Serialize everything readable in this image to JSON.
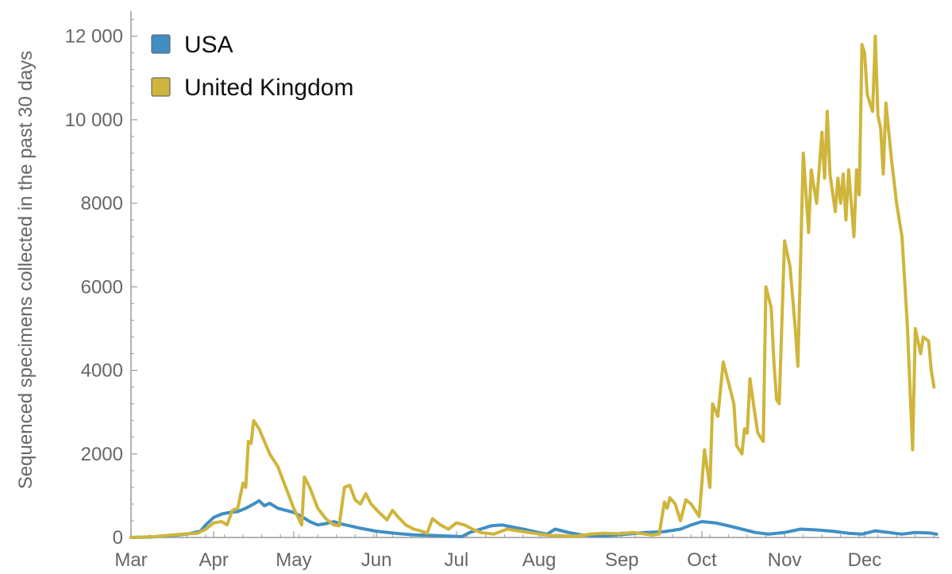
{
  "chart_data": {
    "type": "line",
    "ylabel": "Sequenced specimens collected in the past 30 days",
    "xlabel": "",
    "ylim": [
      0,
      12600
    ],
    "xlim": [
      "2020-03-01",
      "2020-12-29"
    ],
    "x_ticks": [
      {
        "label": "Mar",
        "date": "2020-03-01"
      },
      {
        "label": "Apr",
        "date": "2020-04-01"
      },
      {
        "label": "May",
        "date": "2020-05-01"
      },
      {
        "label": "Jun",
        "date": "2020-06-01"
      },
      {
        "label": "Jul",
        "date": "2020-07-01"
      },
      {
        "label": "Aug",
        "date": "2020-08-01"
      },
      {
        "label": "Sep",
        "date": "2020-09-01"
      },
      {
        "label": "Oct",
        "date": "2020-10-01"
      },
      {
        "label": "Nov",
        "date": "2020-11-01"
      },
      {
        "label": "Dec",
        "date": "2020-12-01"
      }
    ],
    "y_ticks": [
      {
        "value": 0,
        "label": "0"
      },
      {
        "value": 2000,
        "label": "2000"
      },
      {
        "value": 4000,
        "label": "4000"
      },
      {
        "value": 6000,
        "label": "6000"
      },
      {
        "value": 8000,
        "label": "8000"
      },
      {
        "value": 10000,
        "label": "10 000"
      },
      {
        "value": 12000,
        "label": "12 000"
      }
    ],
    "legend_position": "top-left",
    "grid": false,
    "series": [
      {
        "name": "USA",
        "color": "#3f8fc4",
        "points": [
          [
            "2020-03-01",
            0
          ],
          [
            "2020-03-08",
            10
          ],
          [
            "2020-03-15",
            40
          ],
          [
            "2020-03-22",
            80
          ],
          [
            "2020-03-27",
            150
          ],
          [
            "2020-03-29",
            300
          ],
          [
            "2020-04-01",
            480
          ],
          [
            "2020-04-04",
            560
          ],
          [
            "2020-04-07",
            600
          ],
          [
            "2020-04-10",
            620
          ],
          [
            "2020-04-13",
            700
          ],
          [
            "2020-04-16",
            800
          ],
          [
            "2020-04-18",
            880
          ],
          [
            "2020-04-20",
            760
          ],
          [
            "2020-04-22",
            820
          ],
          [
            "2020-04-25",
            700
          ],
          [
            "2020-04-28",
            650
          ],
          [
            "2020-05-01",
            600
          ],
          [
            "2020-05-04",
            500
          ],
          [
            "2020-05-07",
            380
          ],
          [
            "2020-05-10",
            300
          ],
          [
            "2020-05-13",
            330
          ],
          [
            "2020-05-16",
            380
          ],
          [
            "2020-05-19",
            320
          ],
          [
            "2020-05-22",
            280
          ],
          [
            "2020-05-26",
            220
          ],
          [
            "2020-06-01",
            150
          ],
          [
            "2020-06-08",
            100
          ],
          [
            "2020-06-15",
            60
          ],
          [
            "2020-06-22",
            50
          ],
          [
            "2020-06-29",
            30
          ],
          [
            "2020-07-03",
            20
          ],
          [
            "2020-07-06",
            120
          ],
          [
            "2020-07-10",
            200
          ],
          [
            "2020-07-14",
            280
          ],
          [
            "2020-07-18",
            300
          ],
          [
            "2020-07-22",
            250
          ],
          [
            "2020-07-26",
            200
          ],
          [
            "2020-07-31",
            130
          ],
          [
            "2020-08-04",
            80
          ],
          [
            "2020-08-07",
            200
          ],
          [
            "2020-08-12",
            120
          ],
          [
            "2020-08-17",
            60
          ],
          [
            "2020-08-22",
            40
          ],
          [
            "2020-08-28",
            50
          ],
          [
            "2020-09-03",
            80
          ],
          [
            "2020-09-10",
            120
          ],
          [
            "2020-09-17",
            140
          ],
          [
            "2020-09-23",
            200
          ],
          [
            "2020-09-27",
            300
          ],
          [
            "2020-10-01",
            380
          ],
          [
            "2020-10-06",
            350
          ],
          [
            "2020-10-11",
            280
          ],
          [
            "2020-10-16",
            200
          ],
          [
            "2020-10-21",
            120
          ],
          [
            "2020-10-26",
            80
          ],
          [
            "2020-11-01",
            120
          ],
          [
            "2020-11-07",
            200
          ],
          [
            "2020-11-13",
            180
          ],
          [
            "2020-11-19",
            150
          ],
          [
            "2020-11-25",
            100
          ],
          [
            "2020-11-30",
            80
          ],
          [
            "2020-12-05",
            160
          ],
          [
            "2020-12-10",
            120
          ],
          [
            "2020-12-15",
            80
          ],
          [
            "2020-12-20",
            120
          ],
          [
            "2020-12-25",
            110
          ],
          [
            "2020-12-28",
            80
          ]
        ]
      },
      {
        "name": "United Kingdom",
        "color": "#cfb53b",
        "points": [
          [
            "2020-03-01",
            0
          ],
          [
            "2020-03-10",
            20
          ],
          [
            "2020-03-20",
            80
          ],
          [
            "2020-03-26",
            100
          ],
          [
            "2020-03-29",
            200
          ],
          [
            "2020-04-01",
            350
          ],
          [
            "2020-04-04",
            380
          ],
          [
            "2020-04-06",
            300
          ],
          [
            "2020-04-08",
            650
          ],
          [
            "2020-04-10",
            700
          ],
          [
            "2020-04-12",
            1300
          ],
          [
            "2020-04-13",
            1200
          ],
          [
            "2020-04-14",
            2300
          ],
          [
            "2020-04-15",
            2250
          ],
          [
            "2020-04-16",
            2800
          ],
          [
            "2020-04-18",
            2600
          ],
          [
            "2020-04-20",
            2300
          ],
          [
            "2020-04-22",
            2000
          ],
          [
            "2020-04-25",
            1700
          ],
          [
            "2020-04-28",
            1200
          ],
          [
            "2020-05-01",
            700
          ],
          [
            "2020-05-04",
            300
          ],
          [
            "2020-05-05",
            1450
          ],
          [
            "2020-05-07",
            1200
          ],
          [
            "2020-05-10",
            700
          ],
          [
            "2020-05-13",
            450
          ],
          [
            "2020-05-16",
            300
          ],
          [
            "2020-05-18",
            280
          ],
          [
            "2020-05-20",
            1200
          ],
          [
            "2020-05-22",
            1250
          ],
          [
            "2020-05-24",
            900
          ],
          [
            "2020-05-26",
            800
          ],
          [
            "2020-05-28",
            1050
          ],
          [
            "2020-05-30",
            800
          ],
          [
            "2020-06-02",
            600
          ],
          [
            "2020-06-05",
            420
          ],
          [
            "2020-06-07",
            650
          ],
          [
            "2020-06-09",
            500
          ],
          [
            "2020-06-12",
            300
          ],
          [
            "2020-06-15",
            200
          ],
          [
            "2020-06-18",
            150
          ],
          [
            "2020-06-20",
            100
          ],
          [
            "2020-06-22",
            450
          ],
          [
            "2020-06-25",
            300
          ],
          [
            "2020-06-28",
            200
          ],
          [
            "2020-07-01",
            350
          ],
          [
            "2020-07-04",
            300
          ],
          [
            "2020-07-07",
            200
          ],
          [
            "2020-07-10",
            120
          ],
          [
            "2020-07-15",
            80
          ],
          [
            "2020-07-20",
            200
          ],
          [
            "2020-07-25",
            150
          ],
          [
            "2020-07-30",
            100
          ],
          [
            "2020-08-05",
            50
          ],
          [
            "2020-08-15",
            30
          ],
          [
            "2020-08-20",
            80
          ],
          [
            "2020-08-25",
            100
          ],
          [
            "2020-08-31",
            90
          ],
          [
            "2020-09-05",
            120
          ],
          [
            "2020-09-12",
            60
          ],
          [
            "2020-09-15",
            80
          ],
          [
            "2020-09-17",
            850
          ],
          [
            "2020-09-18",
            700
          ],
          [
            "2020-09-19",
            950
          ],
          [
            "2020-09-21",
            800
          ],
          [
            "2020-09-23",
            400
          ],
          [
            "2020-09-25",
            900
          ],
          [
            "2020-09-27",
            800
          ],
          [
            "2020-09-30",
            500
          ],
          [
            "2020-10-02",
            2100
          ],
          [
            "2020-10-04",
            1200
          ],
          [
            "2020-10-05",
            3200
          ],
          [
            "2020-10-07",
            2900
          ],
          [
            "2020-10-09",
            4200
          ],
          [
            "2020-10-11",
            3700
          ],
          [
            "2020-10-13",
            3200
          ],
          [
            "2020-10-14",
            2200
          ],
          [
            "2020-10-16",
            2000
          ],
          [
            "2020-10-17",
            2600
          ],
          [
            "2020-10-18",
            2500
          ],
          [
            "2020-10-19",
            3800
          ],
          [
            "2020-10-21",
            2900
          ],
          [
            "2020-10-22",
            2500
          ],
          [
            "2020-10-24",
            2300
          ],
          [
            "2020-10-25",
            6000
          ],
          [
            "2020-10-27",
            5500
          ],
          [
            "2020-10-28",
            4200
          ],
          [
            "2020-10-29",
            3300
          ],
          [
            "2020-10-30",
            3200
          ],
          [
            "2020-11-01",
            7100
          ],
          [
            "2020-11-03",
            6500
          ],
          [
            "2020-11-05",
            5000
          ],
          [
            "2020-11-06",
            4100
          ],
          [
            "2020-11-08",
            9200
          ],
          [
            "2020-11-10",
            7300
          ],
          [
            "2020-11-11",
            8800
          ],
          [
            "2020-11-13",
            8000
          ],
          [
            "2020-11-15",
            9700
          ],
          [
            "2020-11-16",
            8600
          ],
          [
            "2020-11-17",
            10200
          ],
          [
            "2020-11-18",
            8700
          ],
          [
            "2020-11-20",
            7800
          ],
          [
            "2020-11-21",
            8600
          ],
          [
            "2020-11-22",
            8000
          ],
          [
            "2020-11-23",
            8700
          ],
          [
            "2020-11-24",
            7600
          ],
          [
            "2020-11-25",
            8800
          ],
          [
            "2020-11-27",
            7200
          ],
          [
            "2020-11-28",
            8800
          ],
          [
            "2020-11-29",
            8200
          ],
          [
            "2020-11-30",
            11800
          ],
          [
            "2020-12-01",
            11600
          ],
          [
            "2020-12-02",
            10600
          ],
          [
            "2020-12-04",
            10200
          ],
          [
            "2020-12-05",
            12000
          ],
          [
            "2020-12-06",
            10100
          ],
          [
            "2020-12-07",
            9800
          ],
          [
            "2020-12-08",
            8700
          ],
          [
            "2020-12-09",
            10400
          ],
          [
            "2020-12-11",
            9100
          ],
          [
            "2020-12-13",
            8000
          ],
          [
            "2020-12-15",
            7200
          ],
          [
            "2020-12-17",
            5100
          ],
          [
            "2020-12-19",
            2100
          ],
          [
            "2020-12-20",
            5000
          ],
          [
            "2020-12-22",
            4400
          ],
          [
            "2020-12-23",
            4800
          ],
          [
            "2020-12-25",
            4700
          ],
          [
            "2020-12-26",
            4000
          ],
          [
            "2020-12-27",
            3600
          ]
        ]
      }
    ]
  }
}
